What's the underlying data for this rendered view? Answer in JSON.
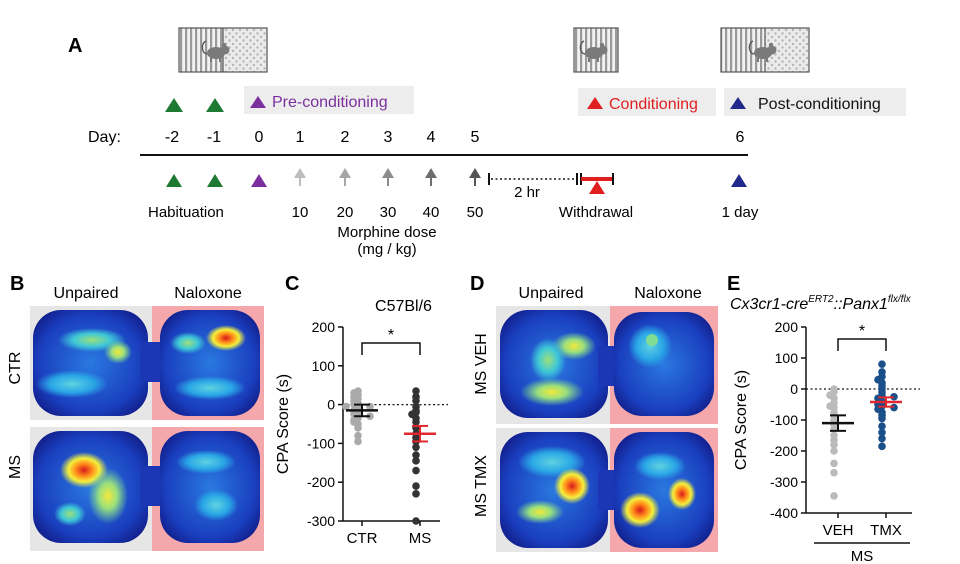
{
  "panel_a": {
    "label": "A",
    "legend": {
      "pre": "Pre-conditioning",
      "cond": "Conditioning",
      "post": "Post-conditioning"
    },
    "day_label": "Day:",
    "days": [
      "-2",
      "-1",
      "0",
      "1",
      "2",
      "3",
      "4",
      "5",
      "6"
    ],
    "doses": [
      "10",
      "20",
      "30",
      "40",
      "50"
    ],
    "habituation": "Habituation",
    "morphine_dose_1": "Morphine dose",
    "morphine_dose_2": "(mg / kg)",
    "two_hr": "2 hr",
    "withdrawal": "Withdrawal",
    "one_day": "1 day",
    "colors": {
      "habituation": "#1e7a33",
      "pre": "#7b2f9e",
      "conditioning": "#e02020",
      "post": "#1f2a8a"
    }
  },
  "panel_b": {
    "label": "B",
    "col1": "Unpaired",
    "col2": "Naloxone",
    "row1": "CTR",
    "row2": "MS"
  },
  "panel_d": {
    "label": "D",
    "col1": "Unpaired",
    "col2": "Naloxone",
    "row1": "MS VEH",
    "row2": "MS TMX"
  },
  "chart_data": [
    {
      "panel": "C",
      "type": "scatter",
      "title": "C57Bl/6",
      "ylabel": "CPA Score (s)",
      "xlabel": "",
      "categories": [
        "CTR",
        "MS"
      ],
      "ylim": [
        -300,
        200
      ],
      "yticks": [
        200,
        100,
        0,
        -100,
        -200,
        -300
      ],
      "significance": "*",
      "series": [
        {
          "name": "CTR",
          "color": "#aaaaaa",
          "mean": -15,
          "sem": 15,
          "values": [
            35,
            25,
            20,
            15,
            10,
            5,
            0,
            -5,
            -10,
            -15,
            -20,
            -25,
            -30,
            -35,
            -40,
            -50,
            -60,
            -80,
            -95,
            30,
            -45,
            -5
          ]
        },
        {
          "name": "MS",
          "color": "#333333",
          "mean": -75,
          "sem": 20,
          "values": [
            35,
            20,
            10,
            -5,
            -15,
            -20,
            -35,
            -45,
            -60,
            -75,
            -85,
            -95,
            -110,
            -130,
            -145,
            -170,
            -210,
            -230,
            -300,
            -25
          ]
        }
      ]
    },
    {
      "panel": "E",
      "type": "scatter",
      "title": "Cx3cr1-cre ERT2::Panx1 flx/flx",
      "title_main": "Cx3cr1-cre",
      "title_sup1": "ERT2",
      "title_mid": "::Panx1",
      "title_sup2": "flx/flx",
      "ylabel": "CPA Score (s)",
      "xlabel": "MS",
      "categories": [
        "VEH",
        "TMX"
      ],
      "ylim": [
        -400,
        200
      ],
      "yticks": [
        200,
        100,
        0,
        -100,
        -200,
        -300,
        -400
      ],
      "significance": "*",
      "series": [
        {
          "name": "VEH",
          "color": "#bbbbbb",
          "mean": -110,
          "sem": 25,
          "values": [
            0,
            -10,
            -30,
            -45,
            -60,
            -75,
            -85,
            -100,
            -115,
            -130,
            -150,
            -165,
            -180,
            -200,
            -240,
            -270,
            -345,
            -20,
            -55
          ]
        },
        {
          "name": "TMX",
          "color": "#1a4f8a",
          "mean": -42,
          "sem": 15,
          "values": [
            80,
            55,
            40,
            30,
            20,
            10,
            0,
            -10,
            -20,
            -30,
            -40,
            -45,
            -50,
            -55,
            -65,
            -75,
            -85,
            -95,
            -120,
            -140,
            -160,
            -185,
            -25,
            -60
          ]
        }
      ]
    }
  ]
}
